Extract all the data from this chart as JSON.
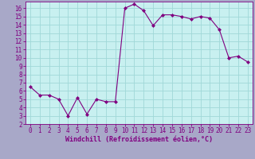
{
  "x": [
    0,
    1,
    2,
    3,
    4,
    5,
    6,
    7,
    8,
    9,
    10,
    11,
    12,
    13,
    14,
    15,
    16,
    17,
    18,
    19,
    20,
    21,
    22,
    23
  ],
  "y": [
    6.5,
    5.5,
    5.5,
    5.0,
    3.0,
    5.2,
    3.2,
    5.0,
    4.7,
    4.7,
    16.0,
    16.5,
    15.7,
    13.9,
    15.2,
    15.2,
    15.0,
    14.7,
    15.0,
    14.8,
    13.4,
    10.0,
    10.2,
    9.5
  ],
  "xlabel": "Windchill (Refroidissement éolien,°C)",
  "ylim": [
    2,
    16.8
  ],
  "xlim": [
    -0.5,
    23.5
  ],
  "yticks": [
    2,
    3,
    4,
    5,
    6,
    7,
    8,
    9,
    10,
    11,
    12,
    13,
    14,
    15,
    16
  ],
  "xticks": [
    0,
    1,
    2,
    3,
    4,
    5,
    6,
    7,
    8,
    9,
    10,
    11,
    12,
    13,
    14,
    15,
    16,
    17,
    18,
    19,
    20,
    21,
    22,
    23
  ],
  "line_color": "#800080",
  "marker": "D",
  "marker_size": 2,
  "bg_color": "#c8f0f0",
  "grid_color": "#a0d8d8",
  "fig_bg": "#a8a8c8",
  "tick_fontsize": 5.5,
  "xlabel_fontsize": 6.0
}
